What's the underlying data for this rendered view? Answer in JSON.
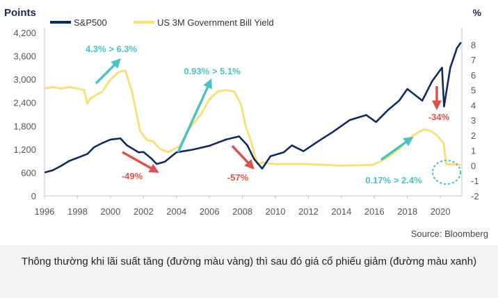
{
  "caption": "Thông thường khi lãi suất tăng (đường màu vàng) thì sau đó giá cổ phiếu giảm (đường màu xanh)",
  "chart_data": {
    "type": "line",
    "title": "",
    "left_axis_title": "Points",
    "right_axis_title": "%",
    "source": "Source: Bloomberg",
    "legend_position": "top-left",
    "colors": {
      "sp500": "#102a5c",
      "yield": "#f7e07a",
      "up_arrow": "#4cc2c0",
      "down_arrow": "#d9534f",
      "axis_text": "#555555"
    },
    "x_ticks": [
      1996,
      1998,
      2000,
      2002,
      2004,
      2006,
      2008,
      2010,
      2012,
      2014,
      2016,
      2018,
      2020
    ],
    "x_tick_labels": [
      "1996",
      "1998",
      "2000",
      "2002",
      "2004",
      "2006",
      "2008",
      "2010",
      "2012",
      "2014",
      "2016",
      "2018",
      "2020"
    ],
    "xlim": [
      1996,
      2021.3
    ],
    "y_left_ticks": [
      0,
      600,
      1200,
      1800,
      2400,
      3000,
      3600,
      4200
    ],
    "y_left_tick_labels": [
      "0",
      "600",
      "1,200",
      "1,800",
      "2,400",
      "3,000",
      "3,600",
      "4,200"
    ],
    "y_left_lim": [
      0,
      4200
    ],
    "y_right_ticks": [
      -2,
      -1,
      0,
      1,
      2,
      3,
      4,
      5,
      6,
      7,
      8
    ],
    "y_right_tick_labels": [
      "-2",
      "-1",
      "0",
      "1",
      "2",
      "3",
      "4",
      "5",
      "6",
      "7",
      "8"
    ],
    "y_right_lim": [
      -2,
      8.8
    ],
    "series": [
      {
        "name": "S&P500",
        "axis": "left",
        "x": [
          1996,
          1996.5,
          1997,
          1997.5,
          1998,
          1998.6,
          1999,
          1999.5,
          2000,
          2000.6,
          2001,
          2001.7,
          2002,
          2002.5,
          2002.8,
          2003.3,
          2004,
          2005,
          2006,
          2007,
          2007.8,
          2008.3,
          2008.7,
          2009.2,
          2009.7,
          2010.5,
          2011,
          2011.7,
          2012.5,
          2013.5,
          2014.5,
          2015.5,
          2016.1,
          2016.8,
          2017.5,
          2018,
          2018.9,
          2019.5,
          2020.1,
          2020.22,
          2020.6,
          2021,
          2021.25
        ],
        "y": [
          600,
          660,
          770,
          900,
          980,
          1080,
          1250,
          1360,
          1450,
          1480,
          1300,
          1120,
          1130,
          950,
          820,
          880,
          1120,
          1190,
          1290,
          1450,
          1530,
          1300,
          950,
          700,
          1020,
          1120,
          1300,
          1150,
          1380,
          1650,
          1950,
          2080,
          1900,
          2200,
          2450,
          2750,
          2450,
          2950,
          3300,
          2300,
          3300,
          3800,
          3950
        ]
      },
      {
        "name": "US 3M Government Bill Yield",
        "axis": "right",
        "x": [
          1996,
          1996.5,
          1997,
          1997.5,
          1998,
          1998.4,
          1998.6,
          1998.75,
          1999,
          1999.5,
          2000,
          2000.5,
          2000.9,
          2001.3,
          2001.8,
          2002.2,
          2002.6,
          2003,
          2003.5,
          2004.2,
          2004.8,
          2005.5,
          2006,
          2006.5,
          2007,
          2007.5,
          2007.9,
          2008.2,
          2008.5,
          2008.9,
          2009.2,
          2010,
          2012,
          2014,
          2015.9,
          2016.4,
          2017,
          2017.6,
          2018,
          2018.5,
          2019,
          2019.4,
          2019.8,
          2020.1,
          2020.2,
          2020.35,
          2021,
          2021.25
        ],
        "y": [
          5.1,
          5.2,
          5.1,
          5.2,
          5.1,
          5.0,
          4.1,
          4.4,
          4.6,
          4.9,
          5.7,
          6.2,
          6.3,
          4.9,
          2.3,
          1.7,
          1.6,
          1.1,
          0.9,
          1.3,
          2.5,
          3.4,
          4.4,
          4.9,
          5.0,
          4.9,
          4.1,
          2.6,
          1.7,
          0.1,
          0.2,
          0.1,
          0.1,
          0.0,
          0.05,
          0.3,
          0.7,
          1.2,
          1.7,
          2.1,
          2.4,
          2.3,
          2.0,
          1.6,
          1.5,
          0.1,
          0.08,
          0.05
        ]
      }
    ],
    "annotations": [
      {
        "text": "4.3% > 6.3%",
        "kind": "up"
      },
      {
        "text": "0.93% > 5.1%",
        "kind": "up"
      },
      {
        "text": "0.17% > 2.4%",
        "kind": "up"
      },
      {
        "text": "-49%",
        "kind": "down"
      },
      {
        "text": "-57%",
        "kind": "down"
      },
      {
        "text": "-34%",
        "kind": "down"
      }
    ]
  }
}
